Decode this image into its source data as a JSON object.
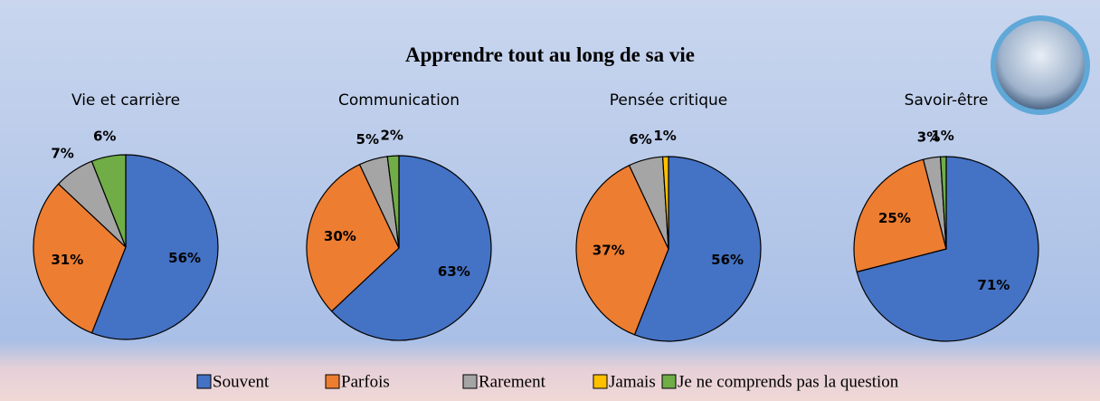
{
  "title": "Apprendre tout au long de sa vie",
  "legend": {
    "names": [
      "Souvent",
      "Parfois",
      "Rarement",
      "Jamais",
      "Je ne comprends pas la question"
    ],
    "colors": [
      "#4472c4",
      "#ed7d31",
      "#a5a5a5",
      "#ffc000",
      "#70ad47"
    ]
  },
  "chart_data": [
    {
      "type": "pie",
      "title": "Vie et carrière",
      "values": [
        56,
        31,
        7,
        null,
        6
      ],
      "value_labels": [
        "56%",
        "31%",
        "7%",
        null,
        "6%"
      ]
    },
    {
      "type": "pie",
      "title": "Communication",
      "values": [
        63,
        30,
        5,
        null,
        2
      ],
      "value_labels": [
        "63%",
        "30%",
        "5%",
        null,
        "2%"
      ]
    },
    {
      "type": "pie",
      "title": "Pensée critique",
      "values": [
        56,
        37,
        6,
        1,
        null
      ],
      "value_labels": [
        "56%",
        "37%",
        "6%",
        "1%",
        null
      ]
    },
    {
      "type": "pie",
      "title": "Savoir-être",
      "values": [
        71,
        25,
        3,
        null,
        1
      ],
      "value_labels": [
        "71%",
        "25%",
        "3%",
        null,
        "1%"
      ]
    }
  ]
}
